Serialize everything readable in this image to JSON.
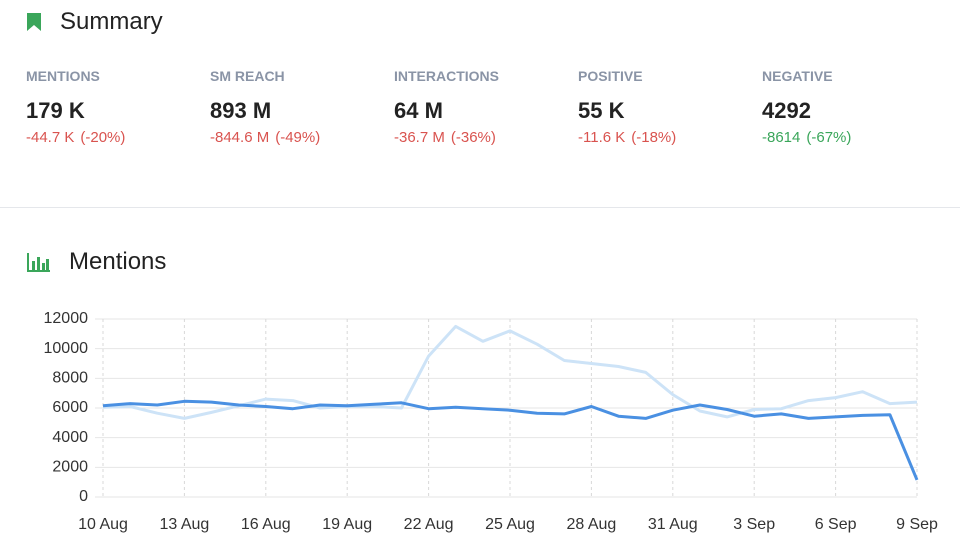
{
  "summary": {
    "title": "Summary",
    "metrics": [
      {
        "label": "MENTIONS",
        "value": "179 K",
        "change": "-44.7 K",
        "pct": "(-20%)",
        "color": "#d9534f"
      },
      {
        "label": "SM REACH",
        "value": "893 M",
        "change": "-844.6 M",
        "pct": "(-49%)",
        "color": "#d9534f"
      },
      {
        "label": "INTERACTIONS",
        "value": "64 M",
        "change": "-36.7 M",
        "pct": "(-36%)",
        "color": "#d9534f"
      },
      {
        "label": "POSITIVE",
        "value": "55 K",
        "change": "-11.6 K",
        "pct": "(-18%)",
        "color": "#d9534f"
      },
      {
        "label": "NEGATIVE",
        "value": "4292",
        "change": "-8614",
        "pct": "(-67%)",
        "color": "#3aa65a"
      }
    ]
  },
  "chart_data": {
    "type": "line",
    "title": "Mentions",
    "categories": [
      "10 Aug",
      null,
      null,
      "13 Aug",
      null,
      null,
      "16 Aug",
      null,
      null,
      "19 Aug",
      null,
      null,
      "22 Aug",
      null,
      null,
      "25 Aug",
      null,
      null,
      "28 Aug",
      null,
      null,
      "31 Aug",
      null,
      null,
      "3 Sep",
      null,
      null,
      "6 Sep",
      null,
      null,
      "9 Sep"
    ],
    "series": [
      {
        "color": "#cde3f7",
        "values": [
          6050,
          6100,
          5650,
          5300,
          5700,
          6150,
          6600,
          6500,
          6000,
          6100,
          6100,
          6000,
          9500,
          11500,
          10500,
          11200,
          10300,
          9200,
          9000,
          8800,
          8400,
          6900,
          5800,
          5400,
          5900,
          5950,
          6500,
          6700,
          7100,
          6300,
          6400
        ]
      },
      {
        "color": "#4a90e2",
        "values": [
          6150,
          6300,
          6200,
          6450,
          6400,
          6200,
          6100,
          5950,
          6200,
          6150,
          6250,
          6350,
          5950,
          6050,
          5950,
          5850,
          5650,
          5600,
          6100,
          5450,
          5300,
          5850,
          6200,
          5900,
          5450,
          5600,
          5300,
          5400,
          5500,
          5550,
          1150
        ]
      }
    ],
    "ylim": [
      0,
      12000
    ],
    "yticks": [
      0,
      2000,
      4000,
      6000,
      8000,
      10000,
      12000
    ],
    "grid": true
  }
}
